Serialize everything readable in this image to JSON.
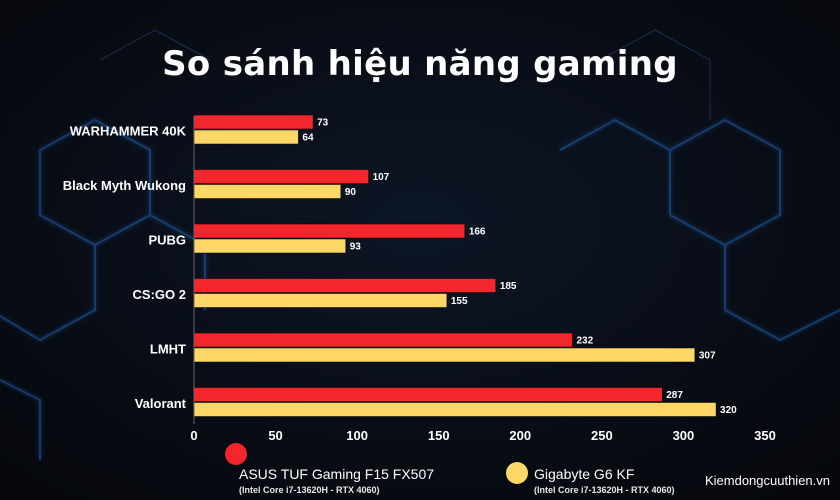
{
  "colors": {
    "background": "#0b0f16",
    "series1": "#f2262c",
    "series2": "#fdd867",
    "hex_glow": "#2a73d6"
  },
  "watermark": "Kiemdongcuuthien.vn",
  "legend": [
    {
      "name": "ASUS TUF Gaming F15 FX507",
      "spec": "(Intel Core i7-13620H - RTX 4060)",
      "color": "#f2262c",
      "icon": "circle-icon"
    },
    {
      "name": "Gigabyte G6 KF",
      "spec": "(Intel Core i7-13620H - RTX 4060)",
      "color": "#fdd867",
      "icon": "circle-icon"
    }
  ],
  "chart_data": {
    "type": "bar",
    "orientation": "horizontal",
    "title": "So sánh hiệu năng gaming",
    "categories": [
      "WARHAMMER 40K",
      "Black Myth Wukong",
      "PUBG",
      "CS:GO 2",
      "LMHT",
      "Valorant"
    ],
    "series": [
      {
        "name": "ASUS TUF Gaming F15 FX507",
        "values": [
          73,
          107,
          166,
          185,
          232,
          287
        ]
      },
      {
        "name": "Gigabyte G6 KF",
        "values": [
          64,
          90,
          93,
          155,
          307,
          320
        ]
      }
    ],
    "xlim": [
      0,
      350
    ],
    "xticks": [
      0,
      50,
      100,
      150,
      200,
      250,
      300,
      350
    ],
    "data_labels": true,
    "grid": false,
    "legend_position": "bottom"
  }
}
